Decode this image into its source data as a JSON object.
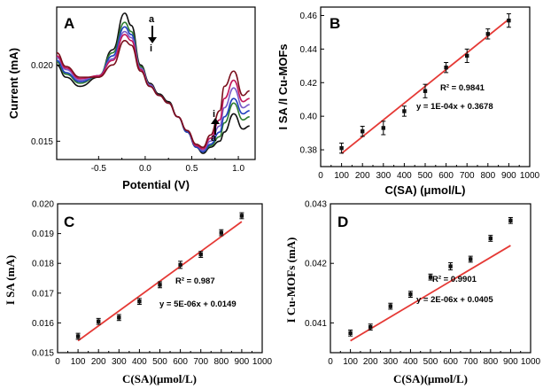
{
  "chart_data": [
    {
      "id": "A",
      "type": "line",
      "panel_label": "A",
      "xlabel": "Potential (V)",
      "ylabel": "Current (mA)",
      "xlim": [
        -0.95,
        1.18
      ],
      "ylim": [
        0.0138,
        0.0238
      ],
      "xticks": [
        -0.5,
        0.0,
        0.5,
        1.0
      ],
      "xtick_labels": [
        "-0.5",
        "0.0",
        "0.5",
        "1.0"
      ],
      "yticks": [
        0.015,
        0.02
      ],
      "ytick_labels": [
        "0.015",
        "0.020"
      ],
      "markers": {
        "top_a": "a",
        "top_i": "i",
        "bottom_i": "i",
        "bottom_a": "a"
      },
      "series": [
        {
          "color": "#111111",
          "x": [
            -0.95,
            -0.85,
            -0.7,
            -0.5,
            -0.35,
            -0.22,
            -0.15,
            -0.05,
            0.05,
            0.15,
            0.25,
            0.35,
            0.45,
            0.55,
            0.62,
            0.7,
            0.8,
            0.85,
            0.95,
            1.05,
            1.12
          ],
          "y": [
            0.02,
            0.0192,
            0.0186,
            0.0192,
            0.021,
            0.0234,
            0.0226,
            0.02,
            0.0188,
            0.0181,
            0.0176,
            0.0166,
            0.0156,
            0.0146,
            0.0142,
            0.0146,
            0.015,
            0.0156,
            0.0168,
            0.0158,
            0.016
          ]
        },
        {
          "color": "#2e7d32",
          "x": [
            -0.95,
            -0.85,
            -0.7,
            -0.5,
            -0.35,
            -0.22,
            -0.15,
            -0.05,
            0.05,
            0.15,
            0.25,
            0.35,
            0.45,
            0.55,
            0.62,
            0.7,
            0.8,
            0.85,
            0.95,
            1.05,
            1.12
          ],
          "y": [
            0.0202,
            0.0194,
            0.0188,
            0.0193,
            0.0208,
            0.0228,
            0.0222,
            0.0199,
            0.0187,
            0.018,
            0.0175,
            0.0166,
            0.0156,
            0.0146,
            0.0143,
            0.0147,
            0.0153,
            0.0162,
            0.0175,
            0.0164,
            0.0166
          ]
        },
        {
          "color": "#1f3fbf",
          "x": [
            -0.95,
            -0.85,
            -0.7,
            -0.5,
            -0.35,
            -0.22,
            -0.15,
            -0.05,
            0.05,
            0.15,
            0.25,
            0.35,
            0.45,
            0.55,
            0.62,
            0.7,
            0.8,
            0.85,
            0.95,
            1.05,
            1.12
          ],
          "y": [
            0.0203,
            0.0195,
            0.0189,
            0.0193,
            0.0206,
            0.0225,
            0.022,
            0.0198,
            0.0187,
            0.018,
            0.0175,
            0.0166,
            0.0156,
            0.0146,
            0.0143,
            0.0148,
            0.0156,
            0.0166,
            0.0178,
            0.0168,
            0.017
          ]
        },
        {
          "color": "#7b5cc9",
          "x": [
            -0.95,
            -0.85,
            -0.7,
            -0.5,
            -0.35,
            -0.22,
            -0.15,
            -0.05,
            0.05,
            0.15,
            0.25,
            0.35,
            0.45,
            0.55,
            0.62,
            0.7,
            0.8,
            0.85,
            0.95,
            1.05,
            1.12
          ],
          "y": [
            0.0205,
            0.0197,
            0.019,
            0.0193,
            0.0204,
            0.0222,
            0.0218,
            0.0198,
            0.0187,
            0.018,
            0.0175,
            0.0166,
            0.0157,
            0.0147,
            0.0144,
            0.015,
            0.016,
            0.0172,
            0.0185,
            0.0172,
            0.0174
          ]
        },
        {
          "color": "#c2185b",
          "x": [
            -0.95,
            -0.85,
            -0.7,
            -0.5,
            -0.35,
            -0.22,
            -0.15,
            -0.05,
            0.05,
            0.15,
            0.25,
            0.35,
            0.45,
            0.55,
            0.62,
            0.7,
            0.8,
            0.85,
            0.95,
            1.05,
            1.12
          ],
          "y": [
            0.0206,
            0.0198,
            0.0191,
            0.0193,
            0.0203,
            0.022,
            0.0216,
            0.0197,
            0.0186,
            0.018,
            0.0175,
            0.0166,
            0.0157,
            0.0147,
            0.0145,
            0.0152,
            0.0164,
            0.0178,
            0.019,
            0.0176,
            0.0178
          ]
        },
        {
          "color": "#7a0f1c",
          "x": [
            -0.95,
            -0.85,
            -0.7,
            -0.5,
            -0.35,
            -0.22,
            -0.15,
            -0.05,
            0.05,
            0.15,
            0.25,
            0.35,
            0.45,
            0.55,
            0.62,
            0.7,
            0.8,
            0.85,
            0.95,
            1.05,
            1.12
          ],
          "y": [
            0.0208,
            0.0199,
            0.0192,
            0.0192,
            0.02,
            0.0216,
            0.0213,
            0.0196,
            0.0186,
            0.018,
            0.0175,
            0.0166,
            0.0157,
            0.0148,
            0.0146,
            0.0154,
            0.017,
            0.0186,
            0.0196,
            0.018,
            0.0183
          ]
        }
      ]
    },
    {
      "id": "B",
      "type": "scatter",
      "panel_label": "B",
      "xlabel": "C(SA) (μmol/L)",
      "ylabel": "I SA /I Cu-MOFs",
      "xlim": [
        0,
        1000
      ],
      "ylim": [
        0.37,
        0.465
      ],
      "xticks": [
        0,
        100,
        200,
        300,
        400,
        500,
        600,
        700,
        800,
        900,
        1000
      ],
      "xtick_labels": [
        "0",
        "100",
        "200",
        "300",
        "400",
        "500",
        "600",
        "700",
        "800",
        "900",
        "1000"
      ],
      "yticks": [
        0.38,
        0.4,
        0.42,
        0.44,
        0.46
      ],
      "ytick_labels": [
        "0.38",
        "0.40",
        "0.42",
        "0.44",
        "0.46"
      ],
      "x": [
        100,
        200,
        300,
        400,
        500,
        600,
        700,
        800,
        900
      ],
      "y": [
        0.381,
        0.391,
        0.393,
        0.403,
        0.415,
        0.429,
        0.436,
        0.449,
        0.457
      ],
      "err": [
        0.003,
        0.003,
        0.004,
        0.003,
        0.004,
        0.003,
        0.004,
        0.003,
        0.004
      ],
      "fit": {
        "slope": 0.0001,
        "intercept": 0.3678,
        "x": [
          100,
          900
        ]
      },
      "annotations": {
        "r2": "R² = 0.9841",
        "equation": "y = 1E-04x + 0.3678"
      }
    },
    {
      "id": "C",
      "type": "scatter",
      "panel_label": "C",
      "xlabel": "C(SA)(μmol/L)",
      "ylabel": "I SA (mA)",
      "xlim": [
        0,
        1000
      ],
      "ylim": [
        0.015,
        0.02
      ],
      "xticks": [
        0,
        100,
        200,
        300,
        400,
        500,
        600,
        700,
        800,
        900,
        1000
      ],
      "xtick_labels": [
        "0",
        "100",
        "200",
        "300",
        "400",
        "500",
        "600",
        "700",
        "800",
        "900",
        "1000"
      ],
      "yticks": [
        0.015,
        0.016,
        0.017,
        0.018,
        0.019,
        0.02
      ],
      "ytick_labels": [
        "0.015",
        "0.016",
        "0.017",
        "0.018",
        "0.019",
        "0.020"
      ],
      "x": [
        100,
        200,
        300,
        400,
        500,
        600,
        700,
        800,
        900
      ],
      "y": [
        0.01555,
        0.01605,
        0.01618,
        0.01672,
        0.01728,
        0.01795,
        0.0183,
        0.01903,
        0.0196
      ],
      "err": [
        0.0001,
        0.0001,
        0.0001,
        0.0001,
        0.0001,
        0.00012,
        0.0001,
        0.0001,
        0.0001
      ],
      "fit": {
        "slope": 5e-06,
        "intercept": 0.0149,
        "x": [
          100,
          900
        ]
      },
      "annotations": {
        "r2": "R² = 0.987",
        "equation": "y = 5E-06x + 0.0149"
      }
    },
    {
      "id": "D",
      "type": "scatter",
      "panel_label": "D",
      "xlabel": "C(SA)(μmol/L)",
      "ylabel": "I Cu-MOFs (mA)",
      "xlim": [
        0,
        1000
      ],
      "ylim": [
        0.0405,
        0.043
      ],
      "xticks": [
        0,
        100,
        200,
        300,
        400,
        500,
        600,
        700,
        800,
        900,
        1000
      ],
      "xtick_labels": [
        "0",
        "100",
        "200",
        "300",
        "400",
        "500",
        "600",
        "700",
        "800",
        "900",
        "1000"
      ],
      "yticks": [
        0.041,
        0.042,
        0.043
      ],
      "ytick_labels": [
        "0.041",
        "0.042",
        "0.043"
      ],
      "x": [
        100,
        200,
        300,
        400,
        500,
        600,
        700,
        800,
        900
      ],
      "y": [
        0.04083,
        0.04093,
        0.04128,
        0.04148,
        0.04177,
        0.04195,
        0.04207,
        0.04242,
        0.04272
      ],
      "err": [
        5e-05,
        5e-05,
        5e-05,
        5e-05,
        5e-05,
        6e-05,
        5e-05,
        5e-05,
        5e-05
      ],
      "fit": {
        "slope": 2e-06,
        "intercept": 0.0405,
        "x": [
          100,
          900
        ]
      },
      "annotations": {
        "r2": "R² = 0.9901",
        "equation": "y = 2E-06x + 0.0405"
      }
    }
  ],
  "style": {
    "fit_color": "#e53935",
    "point_color": "#111111"
  }
}
